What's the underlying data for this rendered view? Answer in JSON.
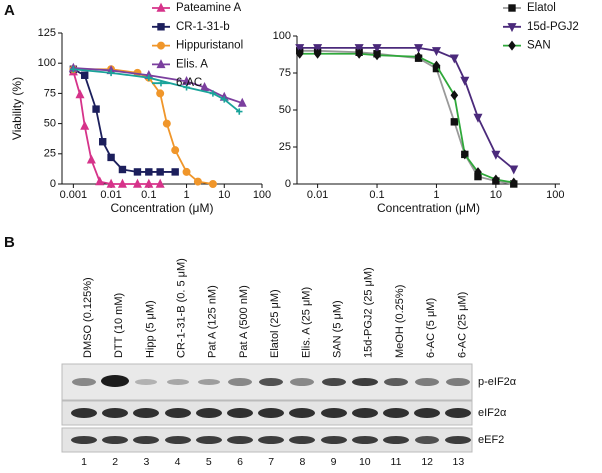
{
  "panels": {
    "a": "A",
    "b": "B"
  },
  "chart_data": [
    {
      "type": "line",
      "xlabel": "Concentration (μM)",
      "ylabel": "Viability (%)",
      "xscale": "log",
      "xlim": [
        0.0005,
        100
      ],
      "xticks": [
        0.001,
        0.01,
        0.1,
        1,
        10,
        100
      ],
      "ylim": [
        0,
        125
      ],
      "yticks": [
        0,
        25,
        50,
        75,
        100,
        125
      ],
      "legend": "upper right",
      "series": [
        {
          "name": "Pateamine A",
          "color": "#d6338a",
          "marker": "triangle",
          "x": [
            0.001,
            0.0015,
            0.002,
            0.003,
            0.005,
            0.01,
            0.02,
            0.05,
            0.1,
            0.2
          ],
          "values": [
            93,
            74,
            48,
            20,
            2,
            0,
            0,
            0,
            0,
            0
          ]
        },
        {
          "name": "CR-1-31-b",
          "color": "#1c1f5c",
          "marker": "square",
          "x": [
            0.001,
            0.002,
            0.004,
            0.006,
            0.01,
            0.02,
            0.05,
            0.1,
            0.2,
            0.5
          ],
          "values": [
            95,
            90,
            62,
            35,
            22,
            12,
            10,
            10,
            10,
            10
          ]
        },
        {
          "name": "Hippuristanol",
          "color": "#f0962a",
          "marker": "circle",
          "x": [
            0.001,
            0.01,
            0.05,
            0.1,
            0.2,
            0.3,
            0.5,
            1,
            2,
            5
          ],
          "values": [
            95,
            95,
            92,
            88,
            75,
            50,
            28,
            10,
            2,
            0
          ]
        },
        {
          "name": "Elis. A",
          "color": "#7b3f9e",
          "marker": "triangle",
          "x": [
            0.001,
            0.01,
            0.1,
            1,
            3,
            10,
            30
          ],
          "values": [
            96,
            94,
            90,
            85,
            80,
            72,
            67
          ]
        },
        {
          "name": "6-AC",
          "color": "#1aa39a",
          "marker": "cross",
          "x": [
            0.001,
            0.01,
            0.1,
            1,
            5,
            10,
            25
          ],
          "values": [
            95,
            92,
            88,
            80,
            75,
            70,
            60
          ]
        }
      ]
    },
    {
      "type": "line",
      "xlabel": "Concentration (μM)",
      "xscale": "log",
      "xlim": [
        0.0045,
        120
      ],
      "xticks": [
        0.01,
        0.1,
        1,
        10,
        100
      ],
      "ylim": [
        0,
        100
      ],
      "yticks": [
        0,
        25,
        50,
        75,
        100
      ],
      "legend": "upper right",
      "series": [
        {
          "name": "Elatol",
          "color": "#9a9a9a",
          "marker_color": "#111111",
          "marker": "square",
          "x": [
            0.005,
            0.01,
            0.05,
            0.1,
            0.5,
            1,
            2,
            3,
            5,
            10,
            20
          ],
          "values": [
            90,
            90,
            89,
            88,
            85,
            78,
            42,
            20,
            5,
            2,
            0
          ]
        },
        {
          "name": "15d-PGJ2",
          "color": "#4b2a7b",
          "marker": "triangle-down",
          "x": [
            0.005,
            0.01,
            0.05,
            0.1,
            0.5,
            1,
            2,
            3,
            5,
            10,
            20
          ],
          "values": [
            92,
            92,
            92,
            92,
            92,
            90,
            85,
            70,
            45,
            20,
            10
          ]
        },
        {
          "name": "SAN",
          "color": "#2fa83a",
          "marker_color": "#111111",
          "marker": "diamond",
          "x": [
            0.005,
            0.01,
            0.05,
            0.1,
            0.5,
            1,
            2,
            3,
            5,
            10,
            20
          ],
          "values": [
            88,
            88,
            88,
            87,
            86,
            80,
            60,
            20,
            8,
            3,
            1
          ]
        }
      ]
    }
  ],
  "blot": {
    "lanes": [
      "DMSO (0.125%)",
      "DTT (10 mM)",
      "Hipp (5 μM)",
      "CR-1-31-B (0. 5 μM)",
      "Pat A (125 nM)",
      "Pat A (500 nM)",
      "Elatol (25 μM)",
      "Elis. A (25 μM)",
      "SAN (5 μM)",
      "15d-PGJ2 (25 μM)",
      "MeOH (0.25%)",
      "6-AC (5 μM)",
      "6-AC (25 μM)"
    ],
    "rows": [
      "p-eIF2α",
      "eIF2α",
      "eEF2"
    ],
    "lane_numbers": [
      1,
      2,
      3,
      4,
      5,
      6,
      7,
      8,
      9,
      10,
      11,
      12,
      13
    ]
  }
}
